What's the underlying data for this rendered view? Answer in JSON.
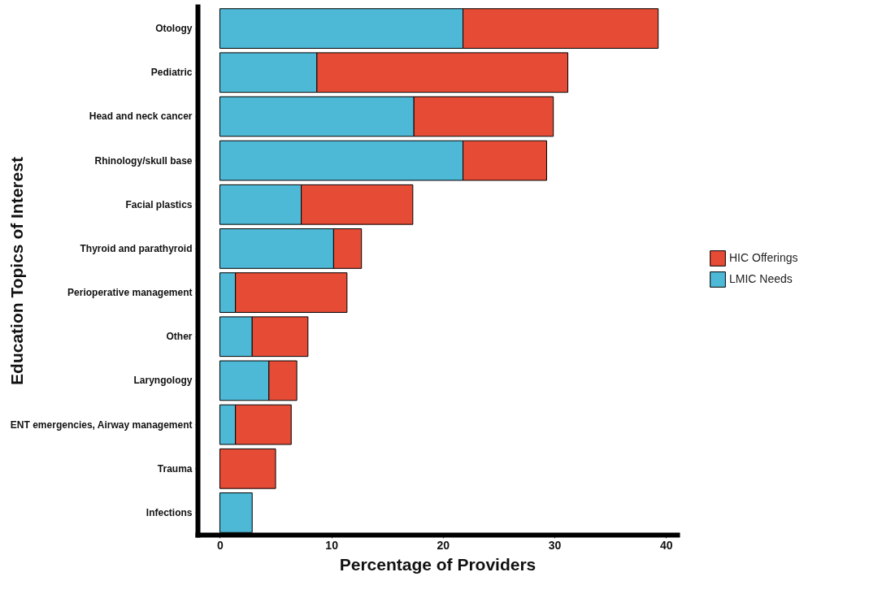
{
  "chart_data": {
    "type": "bar",
    "orientation": "horizontal",
    "stacked": true,
    "xlabel": "Percentage of Providers",
    "ylabel": "Education Topics of Interest",
    "categories": [
      "Otology",
      "Pediatric",
      "Head and neck cancer",
      "Rhinology/skull base",
      "Facial plastics",
      "Thyroid and parathyroid",
      "Perioperative management",
      "Other",
      "Laryngology",
      "ENT emergencies, Airway management",
      "Trauma",
      "Infections"
    ],
    "series": [
      {
        "name": "LMIC Needs",
        "color": "#4db9d6",
        "values": [
          21.8,
          8.7,
          17.4,
          21.8,
          7.3,
          10.2,
          1.4,
          2.9,
          4.4,
          1.4,
          0,
          2.9
        ]
      },
      {
        "name": "HIC Offerings",
        "color": "#e64b35",
        "values": [
          17.5,
          22.5,
          12.5,
          7.5,
          10.0,
          2.5,
          10.0,
          5.0,
          2.5,
          5.0,
          5.0,
          0
        ]
      }
    ],
    "xlim": [
      -2,
      41
    ],
    "xticks": [
      0,
      10,
      20,
      30,
      40
    ],
    "grid": false,
    "legend": "right"
  }
}
